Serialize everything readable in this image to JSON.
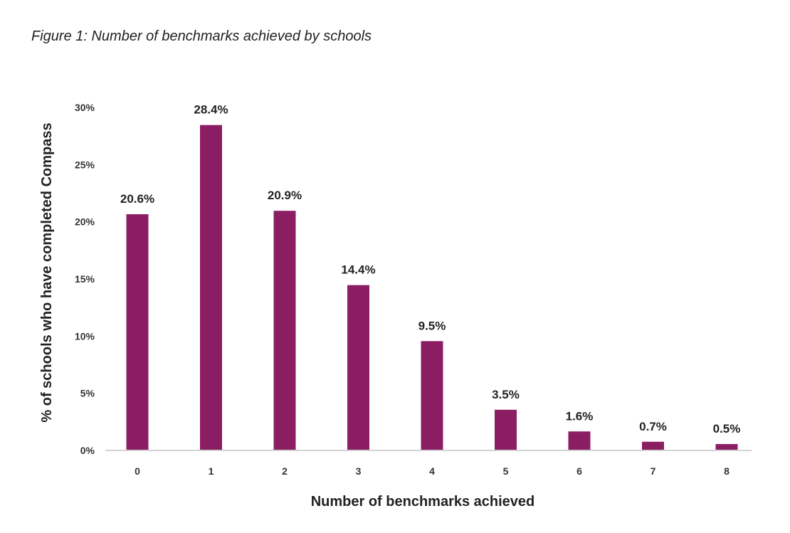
{
  "figure": {
    "caption": "Figure 1: Number of benchmarks achieved by schools"
  },
  "colors": {
    "bar": "#8b1e63",
    "axis_line": "#d3d3d3"
  },
  "chart_data": {
    "type": "bar",
    "title": "Figure 1: Number of benchmarks achieved by schools",
    "categories": [
      "0",
      "1",
      "2",
      "3",
      "4",
      "5",
      "6",
      "7",
      "8"
    ],
    "values": [
      20.6,
      28.4,
      20.9,
      14.4,
      9.5,
      3.5,
      1.6,
      0.7,
      0.5
    ],
    "data_labels": [
      "20.6%",
      "28.4%",
      "20.9%",
      "14.4%",
      "9.5%",
      "3.5%",
      "1.6%",
      "0.7%",
      "0.5%"
    ],
    "xlabel": "Number of benchmarks achieved",
    "ylabel": "% of schools who have completed Compass",
    "yticks": [
      0,
      5,
      10,
      15,
      20,
      25,
      30
    ],
    "ytick_labels": [
      "0%",
      "5%",
      "10%",
      "15%",
      "20%",
      "25%",
      "30%"
    ],
    "ylim": [
      0,
      30
    ],
    "grid": false,
    "legend": "none"
  }
}
